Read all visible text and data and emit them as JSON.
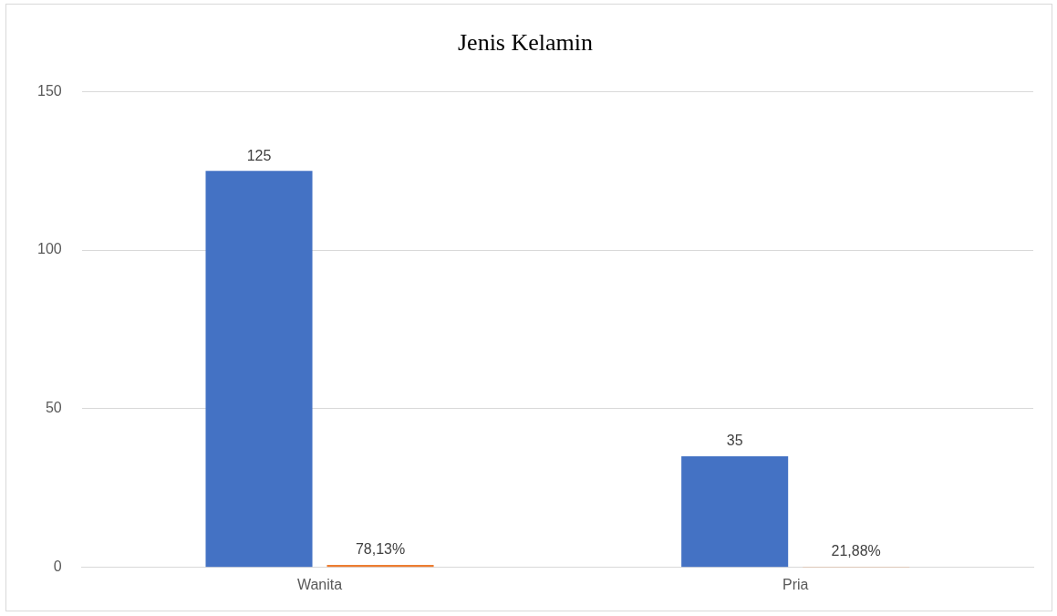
{
  "chart_data": {
    "type": "bar",
    "title": "Jenis Kelamin",
    "categories": [
      "Wanita",
      "Pria"
    ],
    "series": [
      {
        "color": "#4472c4",
        "values": [
          125,
          35
        ],
        "value_labels": [
          "125",
          "35"
        ]
      },
      {
        "color": "#ed7d31",
        "values": [
          0.7813,
          0.2188
        ],
        "value_labels": [
          "78,13%",
          "21,88%"
        ]
      }
    ],
    "ylim": [
      0,
      150
    ],
    "yticks": [
      0,
      50,
      100,
      150
    ],
    "grid": "y",
    "legend": false
  }
}
